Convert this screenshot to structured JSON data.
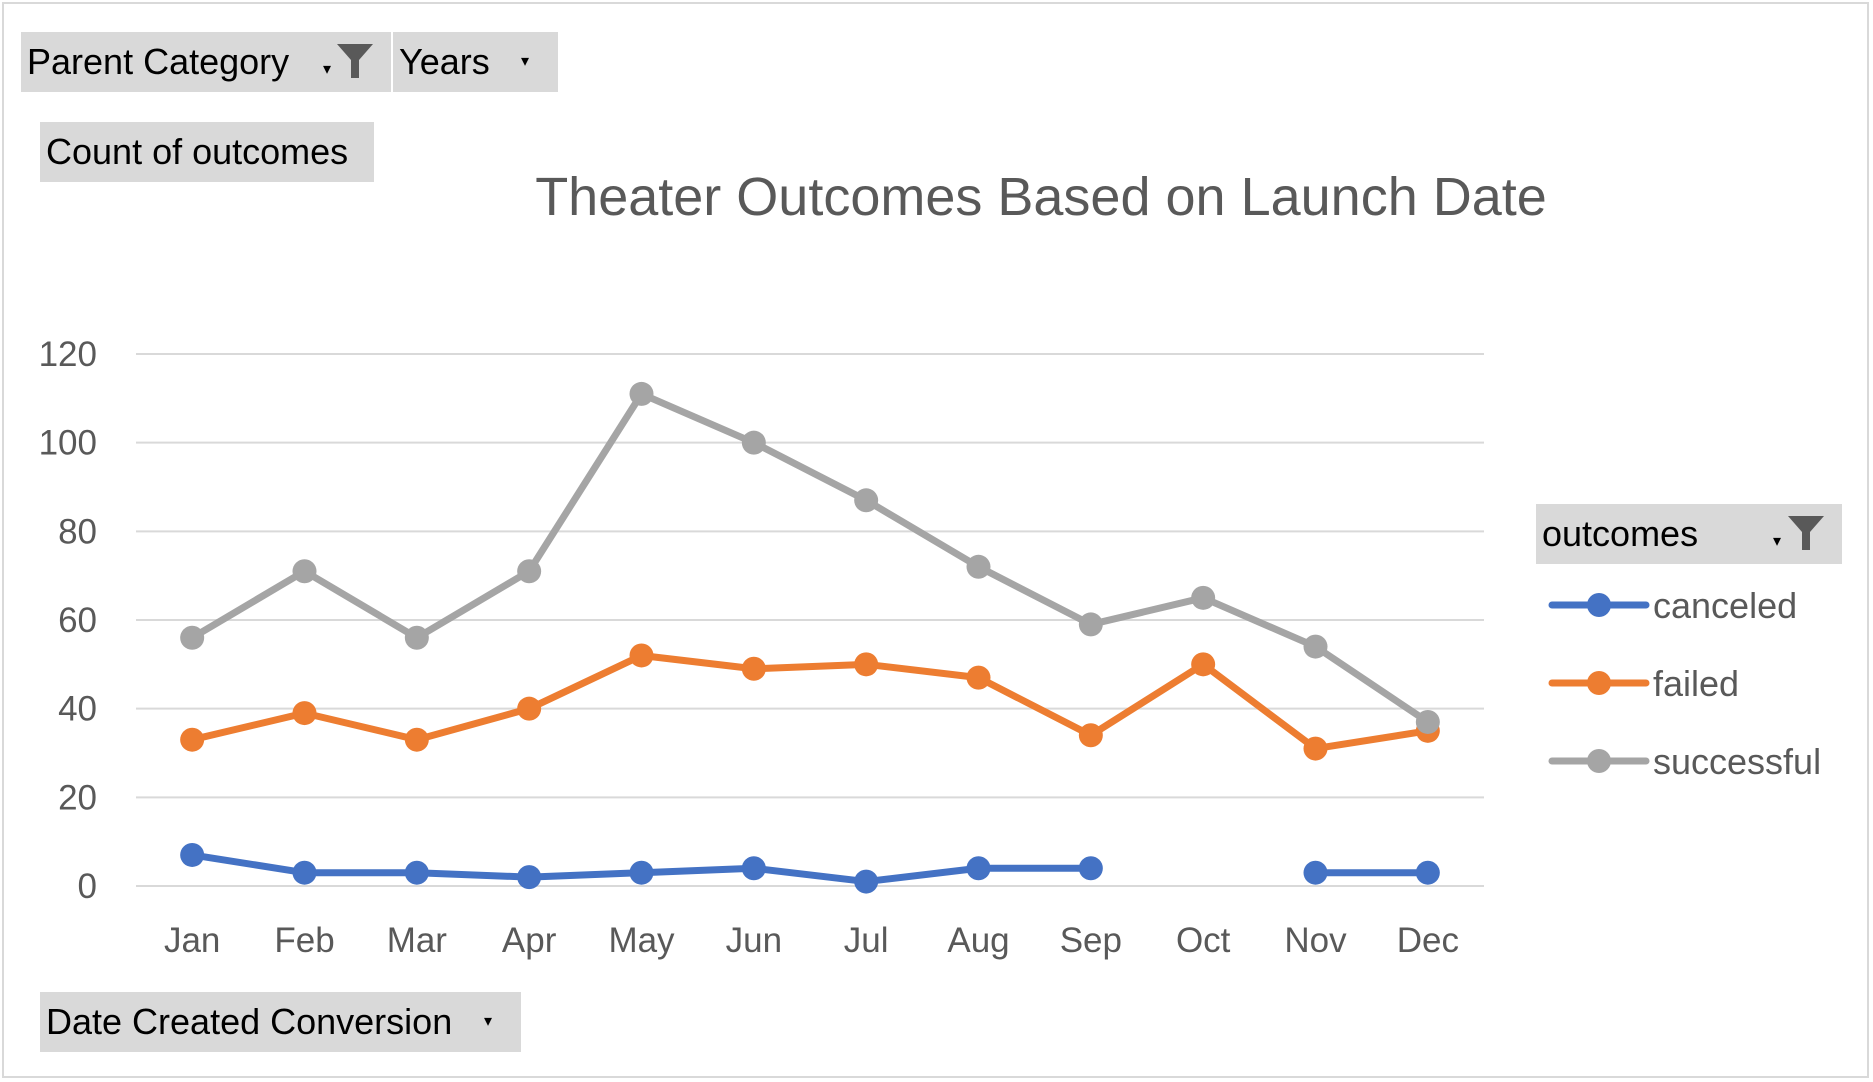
{
  "filters": {
    "parent_category": {
      "label": "Parent Category",
      "icon": "funnel-filter-icon"
    },
    "years": {
      "label": "Years",
      "icon": "dropdown-arrow-icon"
    },
    "values_field": {
      "label": "Count of outcomes"
    },
    "axis_field": {
      "label": "Date Created Conversion",
      "icon": "dropdown-arrow-icon"
    },
    "legend_field": {
      "label": "outcomes",
      "icon": "funnel-filter-icon"
    }
  },
  "chart_data": {
    "type": "line",
    "title": "Theater Outcomes Based on Launch Date",
    "xlabel": "",
    "ylabel": "",
    "categories": [
      "Jan",
      "Feb",
      "Mar",
      "Apr",
      "May",
      "Jun",
      "Jul",
      "Aug",
      "Sep",
      "Oct",
      "Nov",
      "Dec"
    ],
    "ylim": [
      0,
      120
    ],
    "yticks": [
      "0",
      "20",
      "40",
      "60",
      "80",
      "100",
      "120"
    ],
    "grid": true,
    "legend_position": "right",
    "series": [
      {
        "name": "canceled",
        "color": "#4472c4",
        "values": [
          7,
          3,
          3,
          2,
          3,
          4,
          1,
          4,
          4,
          null,
          3,
          3
        ]
      },
      {
        "name": "failed",
        "color": "#ed7d31",
        "values": [
          33,
          39,
          33,
          40,
          52,
          49,
          50,
          47,
          34,
          50,
          31,
          35
        ]
      },
      {
        "name": "successful",
        "color": "#a5a5a5",
        "values": [
          56,
          71,
          56,
          71,
          111,
          100,
          87,
          72,
          59,
          65,
          54,
          37
        ]
      }
    ]
  }
}
